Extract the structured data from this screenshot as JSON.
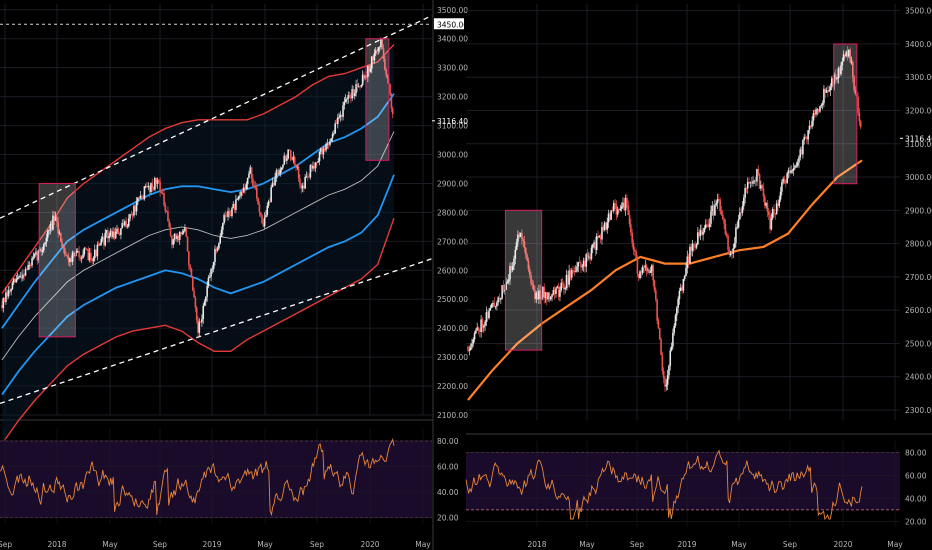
{
  "colors": {
    "background": "#000000",
    "grid": "#1c1c24",
    "candle_up": "#e8e8e8",
    "candle_down": "#ef5350",
    "outer_band": "#e53935",
    "inner_band": "#2196f3",
    "mid_line": "#bdbdbd",
    "trend_line": "#ffffff",
    "ma_line": "#ff7f27",
    "highlight_box": "#d81b60",
    "rsi_line": "#e8863a",
    "rsi_panel": "#1a0b2a",
    "rsi_bound": "#c06080",
    "price_label_bg": "#ffffff"
  },
  "chart_data": [
    {
      "type": "line",
      "subtype": "candlestick",
      "panel": "left-main",
      "x_ticks": [
        "Sep",
        "2018",
        "May",
        "Sep",
        "2019",
        "May",
        "Sep",
        "2020",
        "May"
      ],
      "y_ticks": [
        "2100.00",
        "2200.00",
        "2300.00",
        "2400.00",
        "2500.00",
        "2600.00",
        "2700.00",
        "2800.00",
        "2900.00",
        "3000.00",
        "3100.00",
        "3200.00",
        "3300.00",
        "3400.00",
        "3500.00"
      ],
      "ylim": [
        2100,
        3520
      ],
      "price_labels": [
        "3450.00",
        "3116.40"
      ],
      "price_points": [
        [
          "Sep",
          2480
        ],
        [
          "2017-10",
          2560
        ],
        [
          "2017-11",
          2610
        ],
        [
          "2017-12",
          2670
        ],
        [
          "2018",
          2780
        ],
        [
          "2018-02",
          2640
        ],
        [
          "2018-03",
          2660
        ],
        [
          "2018-04",
          2650
        ],
        [
          "May",
          2720
        ],
        [
          "2018-06",
          2730
        ],
        [
          "2018-07",
          2800
        ],
        [
          "2018-08",
          2880
        ],
        [
          "Sep",
          2910
        ],
        [
          "2018-10",
          2700
        ],
        [
          "2018-11",
          2740
        ],
        [
          "2018-12",
          2380
        ],
        [
          "2019",
          2600
        ],
        [
          "2019-02",
          2780
        ],
        [
          "2019-03",
          2830
        ],
        [
          "2019-04",
          2940
        ],
        [
          "May",
          2760
        ],
        [
          "2019-06",
          2940
        ],
        [
          "2019-07",
          3010
        ],
        [
          "2019-08",
          2890
        ],
        [
          "Sep",
          2980
        ],
        [
          "2019-10",
          3040
        ],
        [
          "2019-11",
          3150
        ],
        [
          "2019-12",
          3230
        ],
        [
          "2020",
          3290
        ],
        [
          "2020-02",
          3390
        ],
        [
          "2020-02b",
          3120
        ]
      ],
      "series": [
        {
          "name": "",
          "role": "outer-upper-band",
          "values": [
            2520,
            2600,
            2680,
            2760,
            2850,
            2900,
            2940,
            2980,
            3020,
            3060,
            3090,
            3110,
            3120,
            3120,
            3120,
            3120,
            3140,
            3170,
            3200,
            3240,
            3270,
            3280,
            3300,
            3320,
            3380
          ]
        },
        {
          "name": "",
          "role": "inner-upper-band",
          "values": [
            2400,
            2480,
            2560,
            2630,
            2700,
            2740,
            2770,
            2800,
            2830,
            2860,
            2880,
            2890,
            2890,
            2880,
            2870,
            2880,
            2900,
            2930,
            2960,
            3000,
            3040,
            3060,
            3090,
            3130,
            3210
          ]
        },
        {
          "name": "",
          "role": "mid-line",
          "values": [
            2290,
            2370,
            2440,
            2500,
            2560,
            2600,
            2630,
            2660,
            2690,
            2720,
            2740,
            2750,
            2740,
            2720,
            2710,
            2720,
            2740,
            2770,
            2800,
            2830,
            2860,
            2880,
            2910,
            2960,
            3080
          ]
        },
        {
          "name": "",
          "role": "inner-lower-band",
          "values": [
            2170,
            2250,
            2320,
            2380,
            2440,
            2480,
            2510,
            2540,
            2560,
            2580,
            2600,
            2590,
            2570,
            2540,
            2520,
            2540,
            2560,
            2590,
            2620,
            2650,
            2680,
            2700,
            2730,
            2790,
            2930
          ]
        },
        {
          "name": "",
          "role": "outer-lower-band",
          "values": [
            2000,
            2080,
            2150,
            2210,
            2270,
            2310,
            2340,
            2370,
            2390,
            2400,
            2410,
            2390,
            2350,
            2320,
            2320,
            2360,
            2390,
            2420,
            2450,
            2480,
            2510,
            2540,
            2570,
            2620,
            2780
          ]
        }
      ],
      "trend_lines": [
        [
          2780,
          3480
        ],
        [
          2140,
          2640
        ]
      ],
      "highlight_boxes": [
        [
          "2017-12",
          "2018-02",
          2370,
          2900
        ],
        [
          "2020",
          "2020-02",
          2980,
          3400
        ]
      ]
    },
    {
      "type": "line",
      "subtype": "rsi",
      "panel": "left-indicator",
      "y_ticks": [
        "20.00",
        "40.00",
        "60.00",
        "80.00"
      ],
      "ylim": [
        15,
        90
      ],
      "bounds": [
        80,
        20
      ],
      "x_ticks": [
        "Sep",
        "2018",
        "May",
        "Sep",
        "2019",
        "May",
        "Sep",
        "2020",
        "May"
      ]
    },
    {
      "type": "line",
      "subtype": "candlestick",
      "panel": "right-main",
      "x_ticks": [
        "2018",
        "May",
        "Sep",
        "2019",
        "May",
        "Sep",
        "2020",
        "May"
      ],
      "y_ticks": [
        "2300.00",
        "2400.00",
        "2500.00",
        "2600.00",
        "2700.00",
        "2800.00",
        "2900.00",
        "3000.00",
        "3100.00",
        "3200.00",
        "3300.00",
        "3400.00",
        "3500.00"
      ],
      "ylim": [
        2270,
        3520
      ],
      "price_labels": [
        "3116.40"
      ],
      "price_points": [
        [
          "2017-09",
          2490
        ],
        [
          "2017-10",
          2560
        ],
        [
          "2017-11",
          2620
        ],
        [
          "2017-12",
          2680
        ],
        [
          "2018",
          2850
        ],
        [
          "2018-02",
          2650
        ],
        [
          "2018-03",
          2650
        ],
        [
          "2018-04",
          2660
        ],
        [
          "May",
          2720
        ],
        [
          "2018-06",
          2750
        ],
        [
          "2018-07",
          2820
        ],
        [
          "2018-08",
          2900
        ],
        [
          "Sep",
          2920
        ],
        [
          "2018-10",
          2700
        ],
        [
          "2018-11",
          2740
        ],
        [
          "2018-12",
          2360
        ],
        [
          "2019",
          2630
        ],
        [
          "2019-02",
          2790
        ],
        [
          "2019-03",
          2840
        ],
        [
          "2019-04",
          2930
        ],
        [
          "May",
          2760
        ],
        [
          "2019-06",
          2950
        ],
        [
          "2019-07",
          3010
        ],
        [
          "2019-08",
          2860
        ],
        [
          "Sep",
          2980
        ],
        [
          "2019-10",
          3040
        ],
        [
          "2019-11",
          3150
        ],
        [
          "2019-12",
          3240
        ],
        [
          "2020",
          3300
        ],
        [
          "2020-02",
          3390
        ],
        [
          "2020-02b",
          3120
        ]
      ],
      "series": [
        {
          "name": "",
          "role": "moving-average",
          "values": [
            2330,
            2420,
            2500,
            2560,
            2610,
            2660,
            2720,
            2760,
            2740,
            2740,
            2760,
            2780,
            2790,
            2830,
            2920,
            3000,
            3050
          ]
        }
      ],
      "highlight_boxes": [
        [
          "2017-12",
          "2018-02",
          2480,
          2900
        ],
        [
          "2020",
          "2020-02",
          2980,
          3400
        ]
      ]
    },
    {
      "type": "line",
      "subtype": "rsi",
      "panel": "right-indicator",
      "y_ticks": [
        "20.00",
        "40.00",
        "60.00",
        "80.00"
      ],
      "ylim": [
        15,
        90
      ],
      "bounds": [
        80,
        30
      ],
      "x_ticks": [
        "2018",
        "May",
        "Sep",
        "2019",
        "May",
        "Sep",
        "2020",
        "May"
      ]
    }
  ]
}
